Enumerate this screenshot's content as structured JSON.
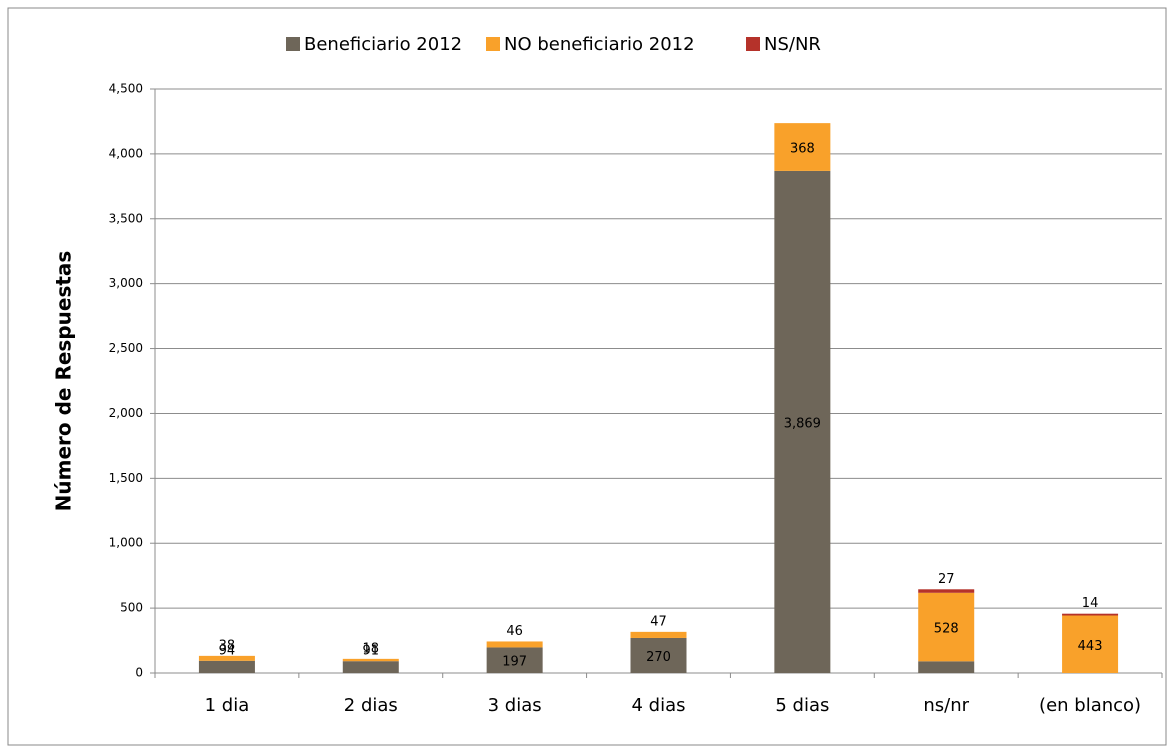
{
  "chart_data": {
    "type": "stacked_bar",
    "y_label": "Número de Respuestas",
    "categories": [
      "1 dia",
      "2 dias",
      "3 dias",
      "4 dias",
      "5 dias",
      "ns/nr",
      "(en blanco)"
    ],
    "series": [
      {
        "name": "Beneficiario 2012",
        "color": "#6e6659",
        "values": [
          94,
          91,
          197,
          270,
          3869,
          90,
          null
        ],
        "value_labels": [
          "94",
          "91",
          "197",
          "270",
          "3,869",
          "90",
          null
        ]
      },
      {
        "name": "NO beneficiario 2012",
        "color": "#f9a12a",
        "values": [
          38,
          18,
          46,
          47,
          368,
          528,
          443
        ]
      },
      {
        "name": "NS/NR",
        "color": "#b5322a",
        "values": [
          null,
          null,
          null,
          null,
          null,
          27,
          14
        ]
      }
    ],
    "ylim": [
      0,
      4500
    ],
    "yticks": [
      0,
      500,
      {
        "value": 1000,
        "label": "1,000"
      },
      {
        "value": 1500,
        "label": "1,500"
      },
      {
        "value": 2000,
        "label": "2,000"
      },
      {
        "value": 2500,
        "label": "2,500"
      },
      {
        "value": 3000,
        "label": "3,000"
      },
      {
        "value": 3500,
        "label": "3,500"
      },
      {
        "value": 4000,
        "label": "4,000"
      },
      {
        "value": 4500,
        "label": "4,500"
      }
    ],
    "grid": true,
    "legend": "top"
  }
}
